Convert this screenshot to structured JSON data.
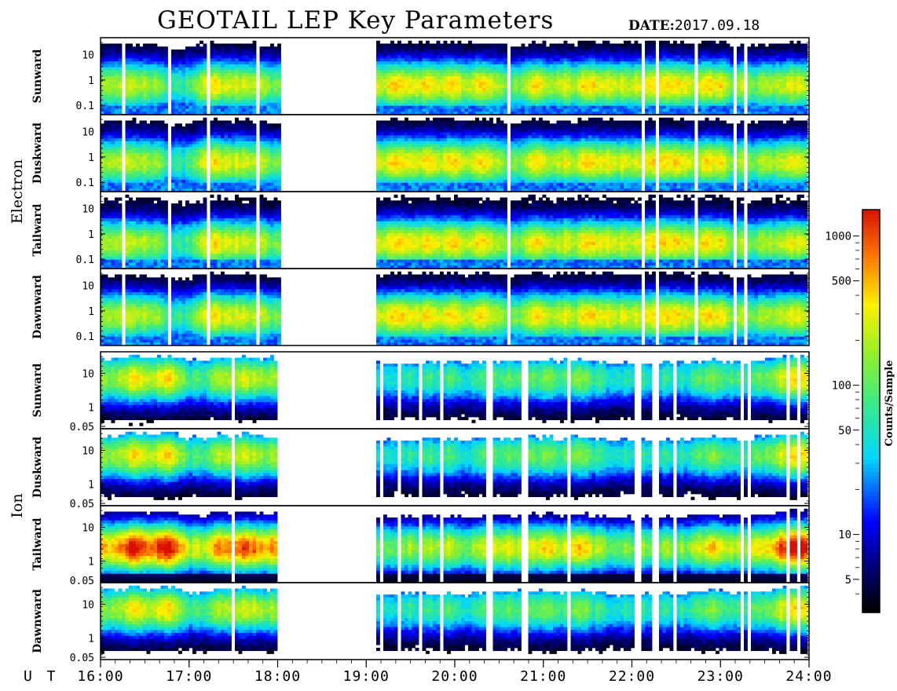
{
  "header": {
    "title": "GEOTAIL LEP Key Parameters",
    "date_label": "DATE:",
    "date_value": "2017.09.18"
  },
  "chart_data": {
    "type": "heatmap",
    "title": "GEOTAIL LEP Key Parameters",
    "xlabel": "U T",
    "x_ticks": [
      "16:00",
      "17:00",
      "18:00",
      "19:00",
      "20:00",
      "21:00",
      "22:00",
      "23:00",
      "24:00"
    ],
    "x_range_hours": [
      16,
      24
    ],
    "data_gap_hours": [
      18.0,
      19.05
    ],
    "species": [
      {
        "name": "Electron",
        "y_ticks": [
          "10",
          "1",
          "0.1"
        ],
        "panels": [
          "Sunward",
          "Duskward",
          "Tailward",
          "Dawnward"
        ]
      },
      {
        "name": "Ion",
        "y_ticks": [
          "10",
          "1",
          "0.05"
        ],
        "panels": [
          "Sunward",
          "Duskward",
          "Tailward",
          "Dawnward"
        ]
      }
    ],
    "colorbar": {
      "label": "Counts/Sample",
      "scale": "log",
      "range": [
        3,
        1500
      ],
      "ticks": [
        "1000",
        "500",
        "100",
        "50",
        "10",
        "5"
      ],
      "tick_values": [
        1000,
        500,
        100,
        50,
        10,
        5
      ]
    }
  }
}
